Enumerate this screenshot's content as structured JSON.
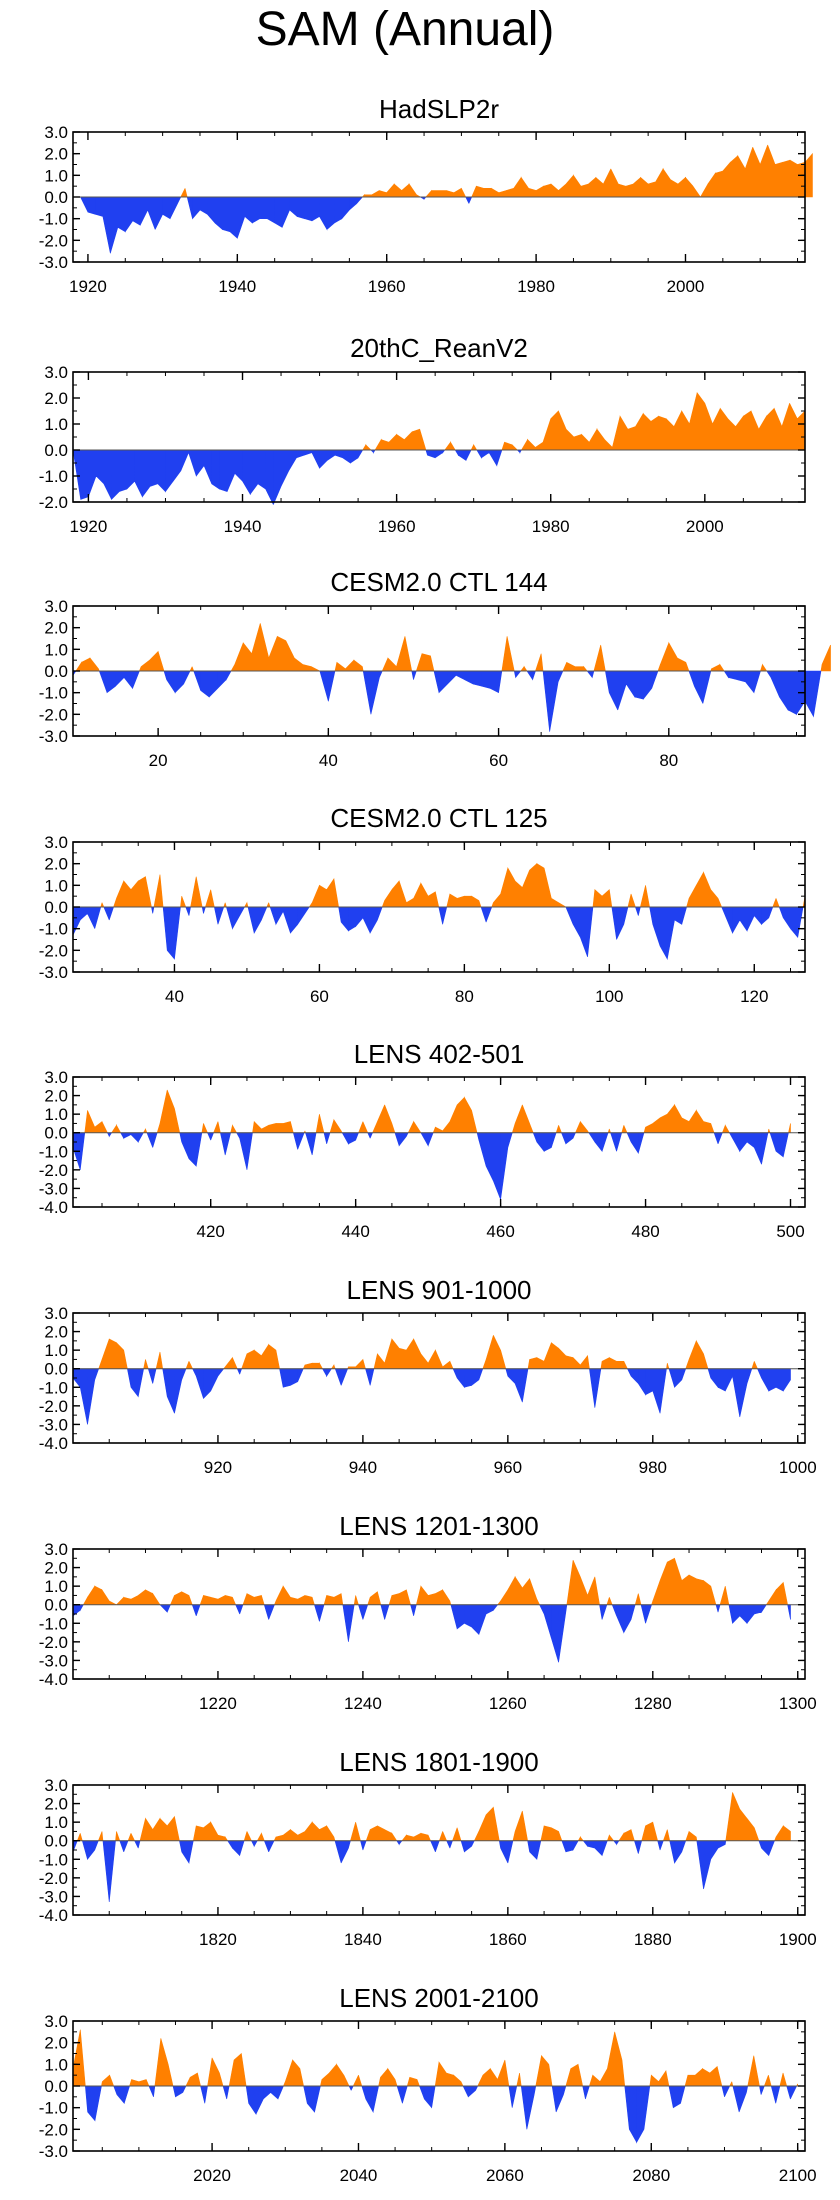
{
  "title": "SAM (Annual)",
  "colors": {
    "positive": "#ff8000",
    "negative": "#2040f0",
    "axis": "#000000"
  },
  "chart_data": [
    {
      "type": "area",
      "title": "HadSLP2r",
      "xlabel": "",
      "ylabel": "",
      "xlim": [
        1918,
        2016
      ],
      "ylim": [
        -3,
        3
      ],
      "yticks": [
        3,
        2,
        1,
        0,
        -1,
        -2,
        -3
      ],
      "ytick_labels": [
        "3.0",
        "2.0",
        "1.0",
        "0.0",
        "-1.0",
        "-2.0",
        "-3.0"
      ],
      "xticks": [
        1920,
        1940,
        1960,
        1980,
        2000
      ],
      "x_start": 1918,
      "values": [
        0.0,
        0.0,
        -0.7,
        -0.8,
        -0.9,
        -2.6,
        -1.4,
        -1.6,
        -1.1,
        -1.3,
        -0.6,
        -1.5,
        -0.8,
        -1.0,
        -0.3,
        0.4,
        -1.0,
        -0.6,
        -0.8,
        -1.2,
        -1.5,
        -1.6,
        -1.9,
        -0.9,
        -1.2,
        -1.0,
        -1.0,
        -1.2,
        -1.4,
        -0.6,
        -0.9,
        -1.0,
        -1.1,
        -0.9,
        -1.5,
        -1.2,
        -1.0,
        -0.6,
        -0.3,
        0.1,
        0.1,
        0.3,
        0.2,
        0.6,
        0.3,
        0.6,
        0.1,
        -0.1,
        0.3,
        0.3,
        0.3,
        0.2,
        0.4,
        -0.3,
        0.5,
        0.4,
        0.4,
        0.2,
        0.3,
        0.4,
        0.9,
        0.4,
        0.3,
        0.5,
        0.6,
        0.3,
        0.6,
        1.0,
        0.5,
        0.6,
        0.9,
        0.6,
        1.3,
        0.6,
        0.5,
        0.6,
        0.9,
        0.6,
        0.7,
        1.3,
        0.8,
        0.6,
        0.9,
        0.5,
        0.0,
        0.6,
        1.1,
        1.2,
        1.6,
        1.9,
        1.3,
        2.3,
        1.5,
        2.4,
        1.5,
        1.6,
        1.7,
        1.5,
        1.6,
        2.0
      ]
    },
    {
      "type": "area",
      "title": "20thC_ReanV2",
      "xlabel": "",
      "ylabel": "",
      "xlim": [
        1918,
        2013
      ],
      "ylim": [
        -2,
        3
      ],
      "yticks": [
        3,
        2,
        1,
        0,
        -1,
        -2
      ],
      "ytick_labels": [
        "3.0",
        "2.0",
        "1.0",
        "0.0",
        "-1.0",
        "-2.0"
      ],
      "xticks": [
        1920,
        1940,
        1960,
        1980,
        2000
      ],
      "x_start": 1918,
      "values": [
        0.0,
        -1.9,
        -1.8,
        -1.0,
        -1.3,
        -1.9,
        -1.6,
        -1.5,
        -1.2,
        -1.8,
        -1.4,
        -1.3,
        -1.6,
        -1.2,
        -0.8,
        -0.1,
        -1.0,
        -0.6,
        -1.3,
        -1.5,
        -1.6,
        -0.9,
        -1.2,
        -1.7,
        -1.3,
        -1.5,
        -2.1,
        -1.4,
        -0.8,
        -0.3,
        -0.2,
        -0.1,
        -0.7,
        -0.4,
        -0.2,
        -0.3,
        -0.5,
        -0.3,
        0.2,
        -0.1,
        0.4,
        0.3,
        0.6,
        0.4,
        0.7,
        0.8,
        -0.2,
        -0.3,
        -0.1,
        0.3,
        -0.2,
        -0.4,
        0.2,
        -0.3,
        -0.1,
        -0.6,
        0.3,
        0.2,
        -0.1,
        0.4,
        0.1,
        0.3,
        1.2,
        1.5,
        0.8,
        0.5,
        0.6,
        0.3,
        0.8,
        0.4,
        0.1,
        1.3,
        0.8,
        0.9,
        1.4,
        1.1,
        1.3,
        1.2,
        0.9,
        1.5,
        1.0,
        2.2,
        1.8,
        1.0,
        1.6,
        1.2,
        0.9,
        1.3,
        1.5,
        0.8,
        1.3,
        1.6,
        0.9,
        1.8,
        1.2,
        1.5
      ]
    },
    {
      "type": "area",
      "title": "CESM2.0 CTL 144",
      "xlabel": "",
      "ylabel": "",
      "xlim": [
        10,
        96
      ],
      "ylim": [
        -3,
        3
      ],
      "yticks": [
        3,
        2,
        1,
        0,
        -1,
        -2,
        -3
      ],
      "ytick_labels": [
        "3.0",
        "2.0",
        "1.0",
        "0.0",
        "-1.0",
        "-2.0",
        "-3.0"
      ],
      "xticks": [
        20,
        40,
        60,
        80
      ],
      "x_start": 10,
      "values": [
        -0.2,
        0.4,
        0.6,
        0.1,
        -1.0,
        -0.7,
        -0.3,
        -0.8,
        0.2,
        0.5,
        0.9,
        -0.4,
        -1.0,
        -0.6,
        0.2,
        -0.9,
        -1.2,
        -0.8,
        -0.4,
        0.3,
        1.3,
        0.8,
        2.2,
        0.6,
        1.6,
        1.4,
        0.6,
        0.3,
        0.2,
        0.0,
        -1.4,
        0.4,
        0.1,
        0.5,
        0.2,
        -2.0,
        -0.3,
        0.6,
        0.2,
        1.6,
        -0.4,
        0.8,
        0.7,
        -1.0,
        -0.6,
        -0.2,
        -0.4,
        -0.6,
        -0.7,
        -0.8,
        -1.0,
        1.6,
        -0.3,
        0.2,
        -0.4,
        0.8,
        -2.8,
        -0.5,
        0.4,
        0.2,
        0.2,
        -0.3,
        1.2,
        -1.0,
        -1.8,
        -0.6,
        -1.2,
        -1.3,
        -0.8,
        0.3,
        1.3,
        0.6,
        0.4,
        -0.7,
        -1.5,
        0.1,
        0.3,
        -0.3,
        -0.4,
        -0.5,
        -1.0,
        0.3,
        -0.3,
        -1.2,
        -1.8,
        -2.0,
        -1.4,
        -2.1,
        0.3,
        1.2
      ]
    },
    {
      "type": "area",
      "title": "CESM2.0 CTL 125",
      "xlabel": "",
      "ylabel": "",
      "xlim": [
        26,
        127
      ],
      "ylim": [
        -3,
        3
      ],
      "yticks": [
        3,
        2,
        1,
        0,
        -1,
        -2,
        -3
      ],
      "ytick_labels": [
        "3.0",
        "2.0",
        "1.0",
        "0.0",
        "-1.0",
        "-2.0",
        "-3.0"
      ],
      "xticks": [
        40,
        60,
        80,
        100,
        120
      ],
      "x_start": 26,
      "values": [
        -1.3,
        -0.6,
        -0.3,
        -1.0,
        0.2,
        -0.6,
        0.4,
        1.2,
        0.8,
        1.2,
        1.4,
        -0.3,
        1.5,
        -2.0,
        -2.4,
        0.5,
        -0.4,
        1.4,
        -0.3,
        0.8,
        -0.8,
        0.2,
        -1.0,
        -0.4,
        0.2,
        -1.2,
        -0.6,
        0.2,
        -0.8,
        -0.2,
        -1.2,
        -0.8,
        -0.3,
        0.2,
        1.0,
        0.8,
        1.3,
        -0.7,
        -1.1,
        -0.9,
        -0.5,
        -1.2,
        -0.6,
        0.3,
        0.8,
        1.2,
        0.2,
        0.4,
        1.1,
        0.5,
        0.7,
        -0.8,
        0.6,
        0.4,
        0.5,
        0.5,
        0.3,
        -0.7,
        0.2,
        0.6,
        1.8,
        1.2,
        0.9,
        1.7,
        2.0,
        1.8,
        0.4,
        0.2,
        0.0,
        -0.8,
        -1.4,
        -2.3,
        0.8,
        0.5,
        0.8,
        -1.5,
        -0.8,
        0.6,
        -0.4,
        1.0,
        -0.8,
        -1.8,
        -2.4,
        -0.6,
        -0.8,
        0.4,
        1.0,
        1.6,
        0.8,
        0.4,
        -0.4,
        -1.2,
        -0.6,
        -1.1,
        -0.4,
        -0.8,
        -0.5,
        0.4,
        -0.5,
        -1.0,
        -1.4,
        0.5
      ]
    },
    {
      "type": "area",
      "title": "LENS 402-501",
      "xlabel": "",
      "ylabel": "",
      "xlim": [
        401,
        502
      ],
      "ylim": [
        -4,
        3
      ],
      "yticks": [
        3,
        2,
        1,
        0,
        -1,
        -2,
        -3,
        -4
      ],
      "ytick_labels": [
        "3.0",
        "2.0",
        "1.0",
        "0.0",
        "-1.0",
        "-2.0",
        "-3.0",
        "-4.0"
      ],
      "xticks": [
        420,
        440,
        460,
        480,
        500
      ],
      "x_start": 401,
      "values": [
        -0.8,
        -2.0,
        1.2,
        0.3,
        0.6,
        -0.2,
        0.4,
        -0.3,
        -0.1,
        -0.5,
        0.2,
        -0.8,
        0.5,
        2.3,
        1.3,
        -0.5,
        -1.4,
        -1.8,
        0.5,
        -0.4,
        0.6,
        -1.2,
        0.4,
        -0.3,
        -2.0,
        0.6,
        0.2,
        0.4,
        0.5,
        0.5,
        0.6,
        -0.9,
        0.1,
        -1.2,
        1.0,
        -0.6,
        0.7,
        0.1,
        -0.6,
        -0.4,
        0.6,
        -0.3,
        0.6,
        1.5,
        0.5,
        -0.7,
        -0.2,
        0.6,
        0.0,
        -0.7,
        0.3,
        0.1,
        0.6,
        1.5,
        1.9,
        1.2,
        -0.4,
        -1.8,
        -2.6,
        -3.6,
        -0.8,
        0.5,
        1.5,
        0.5,
        -0.5,
        -1.0,
        -0.8,
        0.4,
        -0.6,
        -0.3,
        0.6,
        0.1,
        -0.5,
        -1.0,
        0.2,
        -1.0,
        0.4,
        -0.5,
        -1.1,
        0.3,
        0.5,
        0.8,
        1.0,
        1.5,
        0.8,
        0.6,
        1.2,
        0.6,
        0.5,
        -0.6,
        0.4,
        -0.3,
        -1.0,
        -0.5,
        -0.8,
        -1.7,
        0.2,
        -1.0,
        -1.3,
        0.5
      ]
    },
    {
      "type": "area",
      "title": "LENS 901-1000",
      "xlabel": "",
      "ylabel": "",
      "xlim": [
        900,
        1001
      ],
      "ylim": [
        -4,
        3
      ],
      "yticks": [
        3,
        2,
        1,
        0,
        -1,
        -2,
        -3,
        -4
      ],
      "ytick_labels": [
        "3.0",
        "2.0",
        "1.0",
        "0.0",
        "-1.0",
        "-2.0",
        "-3.0",
        "-4.0"
      ],
      "xticks": [
        920,
        940,
        960,
        980,
        1000
      ],
      "x_start": 900,
      "values": [
        -0.5,
        -1.0,
        -3.0,
        -0.6,
        0.5,
        1.6,
        1.4,
        1.0,
        -1.0,
        -1.5,
        0.5,
        -0.8,
        0.9,
        -1.5,
        -2.4,
        -0.6,
        0.4,
        -0.4,
        -1.6,
        -1.2,
        -0.4,
        0.1,
        0.6,
        -0.3,
        0.8,
        1.0,
        0.7,
        1.3,
        1.0,
        -1.0,
        -0.9,
        -0.7,
        0.2,
        0.3,
        0.3,
        -0.4,
        0.2,
        -0.9,
        0.1,
        0.1,
        0.5,
        -0.9,
        0.8,
        0.3,
        1.6,
        1.1,
        1.0,
        1.6,
        0.8,
        0.3,
        1.0,
        0.1,
        0.4,
        -0.5,
        -1.0,
        -0.9,
        -0.6,
        0.5,
        1.8,
        1.0,
        -0.4,
        -0.8,
        -1.8,
        0.5,
        0.6,
        0.4,
        1.4,
        1.1,
        0.7,
        0.6,
        0.2,
        0.7,
        -2.1,
        0.4,
        0.6,
        0.4,
        0.4,
        -0.4,
        -0.8,
        -1.4,
        -1.2,
        -2.4,
        0.3,
        -1.0,
        -0.6,
        0.5,
        1.5,
        0.8,
        -0.5,
        -1.0,
        -1.2,
        -0.4,
        -2.6,
        -0.8,
        0.4,
        -0.5,
        -1.2,
        -1.0,
        -1.2,
        -0.6
      ]
    },
    {
      "type": "area",
      "title": "LENS 1201-1300",
      "xlabel": "",
      "ylabel": "",
      "xlim": [
        1200,
        1301
      ],
      "ylim": [
        -4,
        3
      ],
      "yticks": [
        3,
        2,
        1,
        0,
        -1,
        -2,
        -3,
        -4
      ],
      "ytick_labels": [
        "3.0",
        "2.0",
        "1.0",
        "0.0",
        "-1.0",
        "-2.0",
        "-3.0",
        "-4.0"
      ],
      "xticks": [
        1220,
        1240,
        1260,
        1280,
        1300
      ],
      "x_start": 1200,
      "values": [
        -0.6,
        -0.3,
        0.4,
        1.0,
        0.8,
        0.2,
        0.0,
        0.4,
        0.3,
        0.5,
        0.8,
        0.6,
        0.0,
        -0.4,
        0.5,
        0.7,
        0.5,
        -0.6,
        0.5,
        0.4,
        0.3,
        0.5,
        0.4,
        -0.5,
        0.6,
        0.4,
        0.5,
        -0.8,
        0.2,
        1.0,
        0.4,
        0.3,
        0.5,
        0.4,
        -0.9,
        0.5,
        0.4,
        0.6,
        -2.0,
        0.5,
        -0.8,
        0.4,
        0.7,
        -0.8,
        0.5,
        0.6,
        0.8,
        -0.6,
        1.0,
        0.5,
        0.6,
        0.8,
        0.2,
        -1.3,
        -1.0,
        -1.2,
        -1.6,
        -0.5,
        -0.3,
        0.2,
        0.8,
        1.5,
        0.9,
        1.4,
        0.3,
        -0.5,
        -1.8,
        -3.1,
        -0.4,
        2.4,
        1.5,
        0.5,
        1.5,
        -0.8,
        0.4,
        -0.6,
        -1.5,
        -0.8,
        0.6,
        -1.0,
        0.2,
        1.3,
        2.3,
        2.5,
        1.3,
        1.6,
        1.4,
        1.3,
        1.0,
        -0.4,
        1.0,
        -1.0,
        -0.6,
        -1.0,
        -0.5,
        -0.4,
        0.2,
        0.8,
        1.2,
        -0.8
      ]
    },
    {
      "type": "area",
      "title": "LENS 1801-1900",
      "xlabel": "",
      "ylabel": "",
      "xlim": [
        1800,
        1901
      ],
      "ylim": [
        -4,
        3
      ],
      "yticks": [
        3,
        2,
        1,
        0,
        -1,
        -2,
        -3,
        -4
      ],
      "ytick_labels": [
        "3.0",
        "2.0",
        "1.0",
        "0.0",
        "-1.0",
        "-2.0",
        "-3.0",
        "-4.0"
      ],
      "xticks": [
        1820,
        1840,
        1860,
        1880,
        1900
      ],
      "x_start": 1800,
      "values": [
        -0.6,
        0.4,
        -1.0,
        -0.5,
        0.5,
        -3.3,
        0.5,
        -0.6,
        0.4,
        -0.4,
        1.2,
        0.6,
        1.2,
        0.8,
        1.3,
        -0.6,
        -1.2,
        0.8,
        0.7,
        1.0,
        0.3,
        0.2,
        -0.4,
        -0.8,
        0.5,
        -0.3,
        0.4,
        -0.6,
        0.2,
        0.3,
        0.6,
        0.3,
        0.5,
        1.0,
        0.6,
        0.8,
        0.2,
        -1.2,
        -0.4,
        1.0,
        -0.5,
        0.6,
        0.8,
        0.6,
        0.4,
        -0.2,
        0.3,
        0.2,
        0.4,
        0.3,
        -0.6,
        0.5,
        -0.4,
        0.7,
        -0.6,
        -0.3,
        0.5,
        1.4,
        1.8,
        -0.4,
        -1.2,
        0.5,
        1.6,
        -0.6,
        -1.0,
        0.8,
        0.7,
        0.5,
        -0.6,
        -0.5,
        0.2,
        -0.3,
        -0.4,
        -0.8,
        0.3,
        -0.2,
        0.4,
        0.6,
        -0.7,
        0.8,
        1.0,
        -0.5,
        0.6,
        -1.2,
        -0.6,
        0.5,
        0.2,
        -2.6,
        -1.0,
        -0.4,
        -0.2,
        2.6,
        1.7,
        1.2,
        0.7,
        -0.4,
        -0.8,
        0.2,
        0.8,
        0.5
      ]
    },
    {
      "type": "area",
      "title": "LENS 2001-2100",
      "xlabel": "",
      "ylabel": "",
      "xlim": [
        2001,
        2101
      ],
      "ylim": [
        -3,
        3
      ],
      "yticks": [
        3,
        2,
        1,
        0,
        -1,
        -2,
        -3
      ],
      "ytick_labels": [
        "3.0",
        "2.0",
        "1.0",
        "0.0",
        "-1.0",
        "-2.0",
        "-3.0"
      ],
      "xticks": [
        2020,
        2040,
        2060,
        2080,
        2100
      ],
      "x_start": 2001,
      "values": [
        0.8,
        2.6,
        -1.2,
        -1.6,
        0.2,
        0.5,
        -0.4,
        -0.8,
        0.3,
        0.2,
        0.3,
        -0.5,
        2.2,
        1.0,
        -0.5,
        -0.3,
        0.4,
        0.6,
        -0.8,
        1.3,
        0.6,
        -0.6,
        1.2,
        1.5,
        -0.8,
        -1.3,
        -0.6,
        -0.3,
        -0.6,
        0.2,
        1.2,
        0.8,
        -0.8,
        -1.2,
        0.3,
        0.6,
        1.0,
        0.5,
        -0.2,
        0.5,
        -0.6,
        -1.2,
        0.4,
        0.8,
        0.3,
        -0.8,
        0.4,
        0.3,
        -0.6,
        -1.0,
        1.1,
        0.6,
        0.5,
        0.2,
        -0.5,
        -0.2,
        0.5,
        0.8,
        0.3,
        1.2,
        -1.0,
        0.6,
        -2.0,
        -0.4,
        1.4,
        1.0,
        -1.2,
        -0.4,
        0.8,
        1.0,
        -0.6,
        0.5,
        0.2,
        0.8,
        2.5,
        1.2,
        -2.0,
        -2.6,
        -2.0,
        0.5,
        0.2,
        0.7,
        -1.0,
        -0.8,
        0.5,
        0.5,
        0.8,
        0.6,
        0.9,
        -0.5,
        0.2,
        -1.2,
        -0.3,
        1.4,
        -0.4,
        0.5,
        -0.8,
        0.6,
        -0.6,
        0.1
      ]
    }
  ]
}
